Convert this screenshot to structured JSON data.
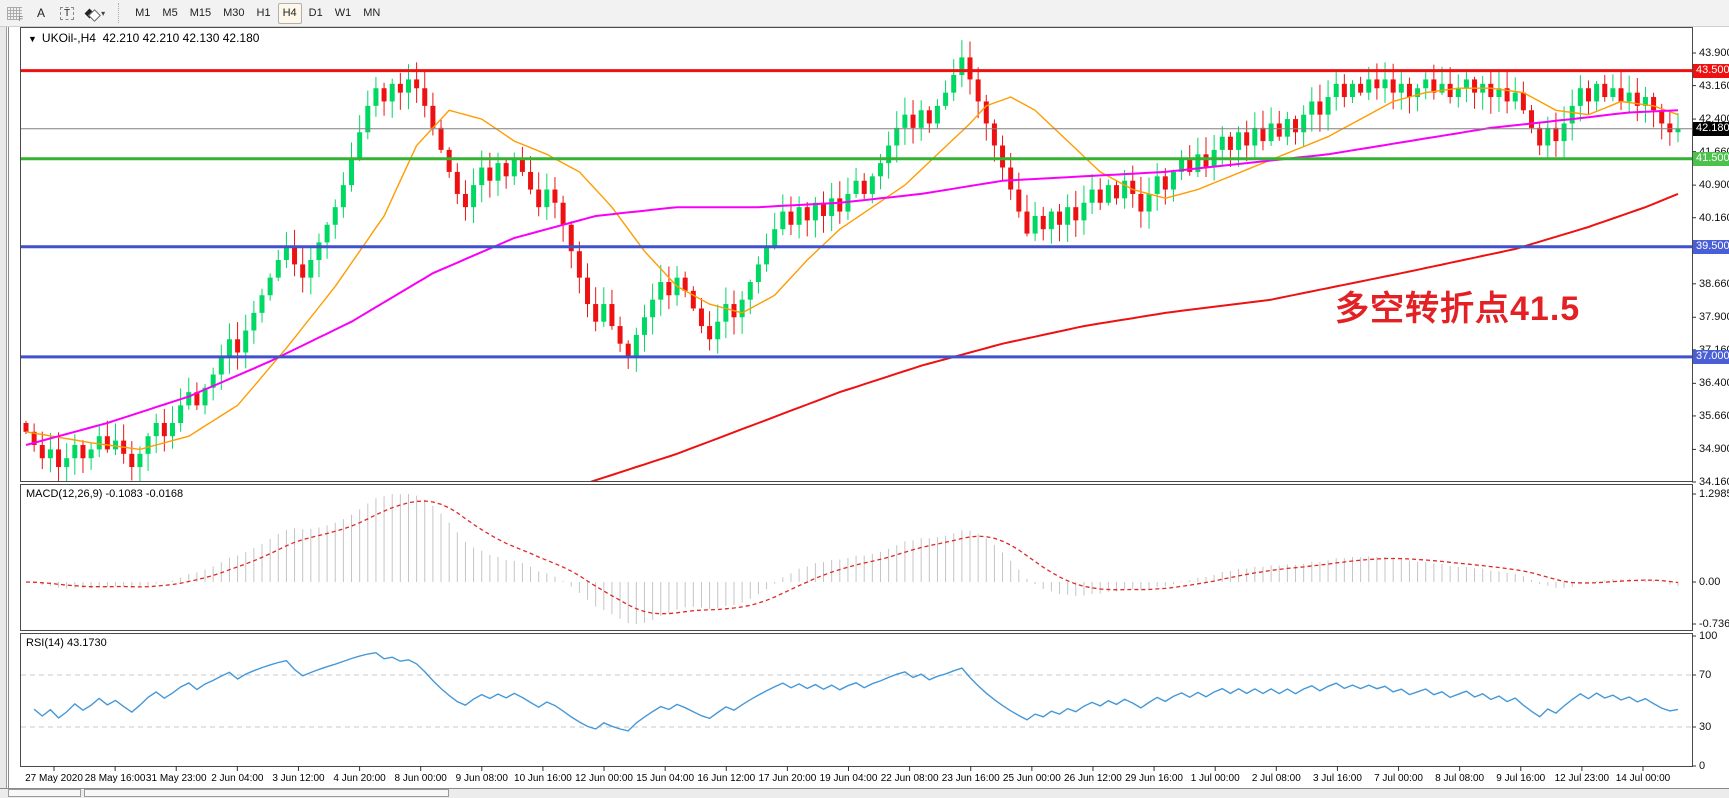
{
  "toolbar": {
    "icon_buttons": [
      {
        "name": "grid-f-icon",
        "glyph": "F"
      },
      {
        "name": "cursor-a-icon",
        "glyph": "A"
      },
      {
        "name": "text-label-icon",
        "glyph": "T"
      },
      {
        "name": "arrows-objects-icon",
        "glyph": "▾"
      }
    ],
    "timeframes": [
      "M1",
      "M5",
      "M15",
      "M30",
      "H1",
      "H4",
      "D1",
      "W1",
      "MN"
    ],
    "active_timeframe": "H4"
  },
  "chart": {
    "title_symbol": "UKOil-,H4",
    "title_ohlc": "42.210 42.210 42.130 42.180",
    "dropdown_icon": "▼"
  },
  "chart_data": {
    "type": "candlestick",
    "symbol": "UKOil-",
    "timeframe": "H4",
    "ohlc_display": {
      "open": "42.210",
      "high": "42.210",
      "low": "42.130",
      "close": "42.180"
    },
    "ylim": [
      34.16,
      43.9
    ],
    "price_axis_labels": [
      "43.900",
      "43.160",
      "42.400",
      "41.660",
      "40.900",
      "40.160",
      "39.400",
      "38.660",
      "37.900",
      "37.160",
      "36.400",
      "35.660",
      "34.900",
      "34.160"
    ],
    "badges": [
      {
        "value": "43.500",
        "price": 43.5,
        "color": "#ed1111"
      },
      {
        "value": "42.180",
        "price": 42.18,
        "color": "#000000"
      },
      {
        "value": "41.500",
        "price": 41.5,
        "color": "#4cc24c"
      },
      {
        "value": "39.500",
        "price": 39.5,
        "color": "#4a5fd6"
      },
      {
        "value": "37.000",
        "price": 37.0,
        "color": "#4a5fd6"
      }
    ],
    "levels": [
      {
        "price": 43.5,
        "color": "#ed1111",
        "width": 3
      },
      {
        "price": 41.5,
        "color": "#33b233",
        "width": 3
      },
      {
        "price": 39.5,
        "color": "#3f51cc",
        "width": 3
      },
      {
        "price": 37.0,
        "color": "#3f51cc",
        "width": 3
      }
    ],
    "current_price_line": {
      "price": 42.18,
      "color": "#808080",
      "width": 1
    },
    "bull_color": "#00d864",
    "bear_color": "#ee1111",
    "open_first": 35.5,
    "closes": [
      35.3,
      35.0,
      34.7,
      34.9,
      34.5,
      34.7,
      35.0,
      34.7,
      34.9,
      35.2,
      34.9,
      35.1,
      34.8,
      34.5,
      34.8,
      35.2,
      35.5,
      35.2,
      35.5,
      35.9,
      36.2,
      35.9,
      36.3,
      36.6,
      37.0,
      37.4,
      37.1,
      37.6,
      38.0,
      38.4,
      38.8,
      39.2,
      39.5,
      39.1,
      38.8,
      39.2,
      39.6,
      40.0,
      40.4,
      40.9,
      41.5,
      42.1,
      42.7,
      43.1,
      42.8,
      43.2,
      43.0,
      43.3,
      43.1,
      42.7,
      42.2,
      41.7,
      41.2,
      40.7,
      40.4,
      40.9,
      41.3,
      41.0,
      41.4,
      41.1,
      41.5,
      41.2,
      40.8,
      40.4,
      40.8,
      40.5,
      40.0,
      39.4,
      38.8,
      38.2,
      37.8,
      38.2,
      37.7,
      37.3,
      37.0,
      37.5,
      37.9,
      38.3,
      38.7,
      38.4,
      38.8,
      38.5,
      38.1,
      37.7,
      37.4,
      37.8,
      38.2,
      37.9,
      38.3,
      38.7,
      39.1,
      39.5,
      39.9,
      40.3,
      40.0,
      40.4,
      40.1,
      40.5,
      40.2,
      40.6,
      40.3,
      40.7,
      41.0,
      40.7,
      41.1,
      41.4,
      41.8,
      42.2,
      42.5,
      42.2,
      42.6,
      42.3,
      42.7,
      43.0,
      43.4,
      43.8,
      43.3,
      42.8,
      42.3,
      41.8,
      41.3,
      40.8,
      40.3,
      39.8,
      40.2,
      39.9,
      40.3,
      40.0,
      40.4,
      40.1,
      40.5,
      40.8,
      40.5,
      40.9,
      40.6,
      41.0,
      40.7,
      40.3,
      40.7,
      41.1,
      40.8,
      41.2,
      41.5,
      41.2,
      41.6,
      41.3,
      41.7,
      42.0,
      41.7,
      42.1,
      41.8,
      42.2,
      41.9,
      42.3,
      42.0,
      42.4,
      42.1,
      42.5,
      42.8,
      42.5,
      42.9,
      43.2,
      42.9,
      43.2,
      43.0,
      43.3,
      43.1,
      43.3,
      43.0,
      43.2,
      42.9,
      43.1,
      43.3,
      43.0,
      43.2,
      42.9,
      43.1,
      43.3,
      43.0,
      43.2,
      42.9,
      43.1,
      42.8,
      43.0,
      42.6,
      42.2,
      41.8,
      42.2,
      41.9,
      42.3,
      42.7,
      43.1,
      42.8,
      43.2,
      42.9,
      43.1,
      42.8,
      43.0,
      42.7,
      42.9,
      42.6,
      42.3,
      42.1,
      42.18
    ],
    "moving_averages": [
      {
        "name": "fast-ma",
        "color": "#ff9c00",
        "width": 1.4,
        "anchors": [
          [
            0,
            35.3
          ],
          [
            8,
            35.05
          ],
          [
            14,
            34.9
          ],
          [
            20,
            35.2
          ],
          [
            26,
            35.9
          ],
          [
            32,
            37.2
          ],
          [
            38,
            38.6
          ],
          [
            44,
            40.2
          ],
          [
            48,
            41.8
          ],
          [
            52,
            42.6
          ],
          [
            56,
            42.4
          ],
          [
            60,
            41.9
          ],
          [
            64,
            41.6
          ],
          [
            68,
            41.2
          ],
          [
            72,
            40.4
          ],
          [
            76,
            39.4
          ],
          [
            80,
            38.6
          ],
          [
            84,
            38.2
          ],
          [
            88,
            38.0
          ],
          [
            92,
            38.4
          ],
          [
            96,
            39.2
          ],
          [
            100,
            39.9
          ],
          [
            104,
            40.4
          ],
          [
            108,
            40.9
          ],
          [
            112,
            41.6
          ],
          [
            116,
            42.3
          ],
          [
            118,
            42.7
          ],
          [
            121,
            42.9
          ],
          [
            124,
            42.6
          ],
          [
            128,
            41.9
          ],
          [
            132,
            41.2
          ],
          [
            136,
            40.8
          ],
          [
            140,
            40.6
          ],
          [
            144,
            40.8
          ],
          [
            148,
            41.1
          ],
          [
            152,
            41.4
          ],
          [
            156,
            41.7
          ],
          [
            160,
            42.0
          ],
          [
            164,
            42.4
          ],
          [
            168,
            42.8
          ],
          [
            172,
            43.0
          ],
          [
            176,
            43.1
          ],
          [
            180,
            43.1
          ],
          [
            184,
            43.0
          ],
          [
            188,
            42.6
          ],
          [
            192,
            42.5
          ],
          [
            196,
            42.8
          ],
          [
            200,
            42.7
          ],
          [
            203,
            42.5
          ]
        ]
      },
      {
        "name": "mid-ma",
        "color": "#f800f8",
        "width": 2,
        "anchors": [
          [
            0,
            35.0
          ],
          [
            10,
            35.5
          ],
          [
            20,
            36.1
          ],
          [
            30,
            36.9
          ],
          [
            40,
            37.8
          ],
          [
            50,
            38.9
          ],
          [
            60,
            39.7
          ],
          [
            70,
            40.2
          ],
          [
            80,
            40.4
          ],
          [
            90,
            40.4
          ],
          [
            100,
            40.5
          ],
          [
            110,
            40.7
          ],
          [
            120,
            41.0
          ],
          [
            130,
            41.1
          ],
          [
            140,
            41.2
          ],
          [
            150,
            41.4
          ],
          [
            160,
            41.6
          ],
          [
            170,
            41.9
          ],
          [
            180,
            42.2
          ],
          [
            190,
            42.4
          ],
          [
            197,
            42.55
          ],
          [
            203,
            42.6
          ]
        ]
      },
      {
        "name": "slow-ma",
        "color": "#ee1111",
        "width": 2,
        "anchors": [
          [
            0,
            30.5
          ],
          [
            20,
            31.5
          ],
          [
            40,
            32.5
          ],
          [
            60,
            33.6
          ],
          [
            70,
            34.2
          ],
          [
            80,
            34.8
          ],
          [
            90,
            35.5
          ],
          [
            100,
            36.2
          ],
          [
            110,
            36.8
          ],
          [
            120,
            37.3
          ],
          [
            130,
            37.7
          ],
          [
            140,
            38.0
          ],
          [
            153,
            38.3
          ],
          [
            169,
            38.9
          ],
          [
            183,
            39.45
          ],
          [
            192,
            39.95
          ],
          [
            199,
            40.4
          ],
          [
            203,
            40.7
          ]
        ]
      }
    ],
    "annotation": {
      "text": "多空转折点41.5",
      "color": "#e32024"
    },
    "macd": {
      "label": "MACD(12,26,9) -0.1083 -0.0168",
      "params": [
        12,
        26,
        9
      ],
      "values": [
        "-0.1083",
        "-0.0168"
      ],
      "axis_labels": [
        "1.2985",
        "0.00",
        "-0.7362"
      ],
      "histogram_color": "#c4c4c4",
      "signal_color": "#e02828"
    },
    "rsi": {
      "label": "RSI(14) 43.1730",
      "period": 14,
      "value": "43.1730",
      "axis_labels": [
        "100",
        "70",
        "30",
        "0"
      ],
      "level_lines": [
        70,
        30
      ],
      "line_color": "#4598d8",
      "level_color": "#c8c8c8"
    },
    "time_labels": [
      "27 May 2020",
      "28 May 16:00",
      "31 May 23:00",
      "2 Jun 04:00",
      "3 Jun 12:00",
      "4 Jun 20:00",
      "8 Jun 00:00",
      "9 Jun 08:00",
      "10 Jun 16:00",
      "12 Jun 00:00",
      "15 Jun 04:00",
      "16 Jun 12:00",
      "17 Jun 20:00",
      "19 Jun 04:00",
      "22 Jun 08:00",
      "23 Jun 16:00",
      "25 Jun 00:00",
      "26 Jun 12:00",
      "29 Jun 16:00",
      "1 Jul 00:00",
      "2 Jul 08:00",
      "3 Jul 16:00",
      "7 Jul 00:00",
      "8 Jul 08:00",
      "9 Jul 16:00",
      "12 Jul 23:00",
      "14 Jul 00:00"
    ]
  }
}
